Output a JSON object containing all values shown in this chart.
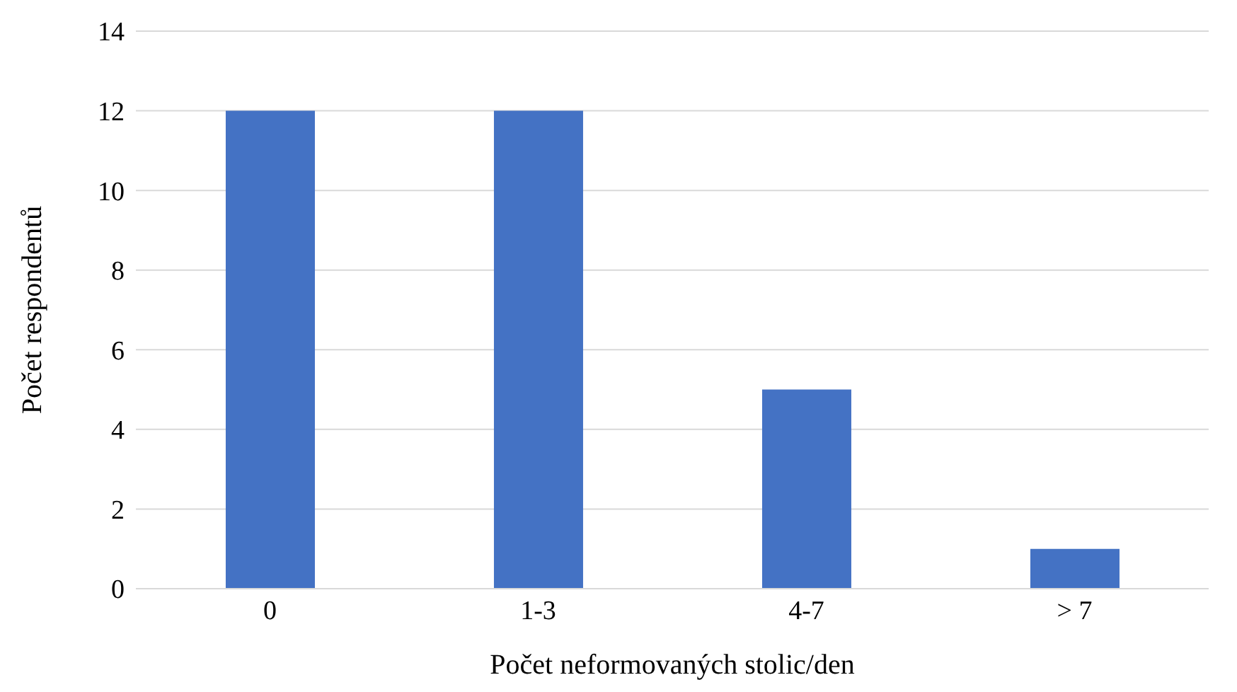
{
  "chart_data": {
    "type": "bar",
    "xlabel": "Počet neformovaných stolic/den",
    "ylabel": "Počet respondentů",
    "categories": [
      "0",
      "1-3",
      "4-7",
      "> 7"
    ],
    "values": [
      12,
      12,
      5,
      1
    ],
    "color": "#4472c4",
    "ylim": [
      0,
      14
    ],
    "yticks": [
      0,
      2,
      4,
      6,
      8,
      10,
      12,
      14
    ],
    "grid": "y"
  }
}
